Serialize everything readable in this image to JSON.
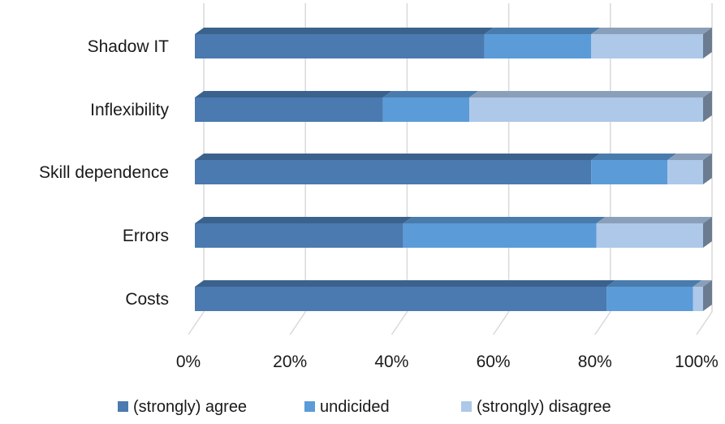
{
  "chart_data": {
    "type": "bar",
    "orientation": "horizontal",
    "stacked": true,
    "percent_stacked": true,
    "three_d": true,
    "categories": [
      "Shadow IT",
      "Inflexibility",
      "Skill dependence",
      "Errors",
      "Costs"
    ],
    "series": [
      {
        "name": "(strongly) agree",
        "color": "#4a7ab0",
        "values": [
          57,
          37,
          78,
          41,
          81
        ]
      },
      {
        "name": "undicided",
        "color": "#5b9bd8",
        "values": [
          21,
          17,
          15,
          38,
          17
        ]
      },
      {
        "name": "(strongly) disagree",
        "color": "#adc8e8",
        "values": [
          22,
          46,
          7,
          21,
          2
        ]
      }
    ],
    "x_ticks": [
      "0%",
      "20%",
      "40%",
      "60%",
      "80%",
      "100%"
    ],
    "xlim": [
      0,
      100
    ],
    "grid": true,
    "legend_position": "bottom"
  }
}
